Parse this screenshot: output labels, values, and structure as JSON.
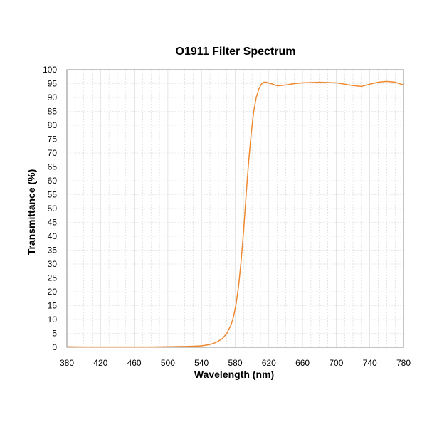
{
  "chart_data": {
    "type": "line",
    "title": "O1911 Filter Spectrum",
    "xlabel": "Wavelength (nm)",
    "ylabel": "Transmittance (%)",
    "xlim": [
      380,
      780
    ],
    "ylim": [
      0,
      100
    ],
    "x_ticks": [
      380,
      420,
      460,
      500,
      540,
      580,
      620,
      660,
      700,
      740,
      780
    ],
    "y_ticks": [
      0,
      5,
      10,
      15,
      20,
      25,
      30,
      35,
      40,
      45,
      50,
      55,
      60,
      65,
      70,
      75,
      80,
      85,
      90,
      95,
      100
    ],
    "grid": true,
    "legend": "none",
    "line_color": "#f08a30",
    "series": [
      {
        "x": [
          380,
          400,
          420,
          440,
          460,
          480,
          500,
          520,
          530,
          540,
          550,
          555,
          560,
          565,
          570,
          575,
          578,
          581,
          584,
          587,
          590,
          593,
          596,
          599,
          602,
          605,
          608,
          611,
          614,
          617,
          620,
          625,
          630,
          640,
          650,
          660,
          670,
          680,
          690,
          700,
          710,
          720,
          730,
          740,
          750,
          760,
          770,
          780
        ],
        "y": [
          0.2,
          0.1,
          0.1,
          0.1,
          0.1,
          0.1,
          0.2,
          0.3,
          0.4,
          0.5,
          1.0,
          1.5,
          2.2,
          3.2,
          5.0,
          8.0,
          11.0,
          15.5,
          22.0,
          31.0,
          42.0,
          55.0,
          67.0,
          77.0,
          85.0,
          90.0,
          93.0,
          94.8,
          95.5,
          95.5,
          95.2,
          94.8,
          94.2,
          94.5,
          95.0,
          95.3,
          95.4,
          95.5,
          95.4,
          95.3,
          94.8,
          94.3,
          94.0,
          94.8,
          95.5,
          95.8,
          95.5,
          94.5
        ]
      }
    ]
  }
}
